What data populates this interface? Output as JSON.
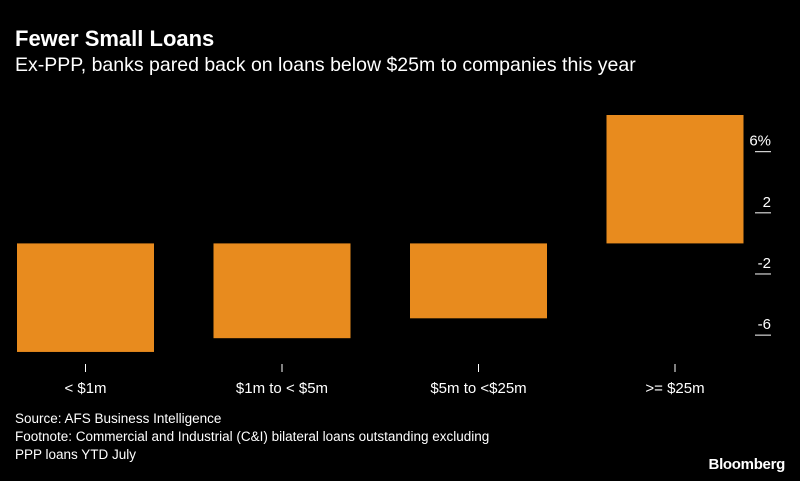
{
  "title": "Fewer Small Loans",
  "subtitle": "Ex-PPP, banks pared back on loans below $25m to companies this year",
  "footer": {
    "source": "Source: AFS Business Intelligence",
    "footnote_line1": "Footnote: Commercial and Industrial (C&I) bilateral loans outstanding excluding",
    "footnote_line2": "PPP loans YTD July"
  },
  "logo": "Bloomberg",
  "colors": {
    "bar": "#E88B1E",
    "background": "#000000",
    "text": "#FFFFFF"
  },
  "chart_data": {
    "type": "bar",
    "categories": [
      "< $1m",
      "$1m to < $5m",
      "$5m to <$25m",
      ">= $25m"
    ],
    "values": [
      -7.1,
      -6.2,
      -4.9,
      8.4
    ],
    "ylim": [
      -7.3,
      8.4
    ],
    "yticks": [
      6,
      2,
      -2,
      -6
    ],
    "ytick_labels": [
      "6%",
      "2",
      "-2",
      "-6"
    ],
    "y_axis_position": "right",
    "grid": false
  }
}
